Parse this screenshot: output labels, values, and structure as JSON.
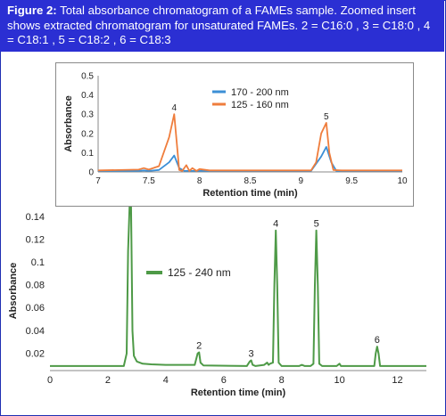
{
  "figure": {
    "label": "Figure 2:",
    "caption": "Total absorbance chromatogram of a FAMEs sample. Zoomed insert shows extracted chromatogram for unsaturated FAMEs. 2 = C16:0 , 3 = C18:0 , 4 = C18:1 , 5 = C18:2 , 6 = C18:3"
  },
  "colors": {
    "frame": "#1f2fb3",
    "caption_bg": "#2b2fd3",
    "main_line": "#4e9a47",
    "inset_blue": "#3b8fd6",
    "inset_orange": "#ef7d3c"
  },
  "chart_data": [
    {
      "type": "line",
      "name": "main",
      "xlabel": "Retention time (min)",
      "ylabel": "Absorbance",
      "xlim": [
        0,
        13
      ],
      "ylim": [
        0.005,
        0.145
      ],
      "xticks": [
        0,
        2,
        4,
        6,
        8,
        10,
        12
      ],
      "yticks": [
        0.02,
        0.04,
        0.06,
        0.08,
        0.1,
        0.12,
        0.14
      ],
      "ytick_labels": [
        "0.02",
        "0.04",
        "0.06",
        "0.08",
        "0.1",
        "0.12",
        "0.14"
      ],
      "legend": "left-middle",
      "series": [
        {
          "name": "125 - 240 nm",
          "color": "#4e9a47",
          "x": [
            0.0,
            2.55,
            2.65,
            2.7,
            2.75,
            2.8,
            2.85,
            2.9,
            3.0,
            3.2,
            3.5,
            4.0,
            5.0,
            5.1,
            5.15,
            5.2,
            5.3,
            6.8,
            6.9,
            6.95,
            7.0,
            7.1,
            7.4,
            7.5,
            7.55,
            7.6,
            7.7,
            7.75,
            7.8,
            7.85,
            7.9,
            8.0,
            8.6,
            8.7,
            8.8,
            9.0,
            9.1,
            9.15,
            9.2,
            9.25,
            9.3,
            9.4,
            9.9,
            10.0,
            10.05,
            11.2,
            11.25,
            11.3,
            11.35,
            11.4,
            12.0,
            13.0
          ],
          "values": [
            0.009,
            0.009,
            0.02,
            0.11,
            0.15,
            0.15,
            0.04,
            0.018,
            0.013,
            0.011,
            0.0105,
            0.01,
            0.01,
            0.02,
            0.021,
            0.012,
            0.0095,
            0.009,
            0.013,
            0.014,
            0.01,
            0.009,
            0.01,
            0.012,
            0.01,
            0.011,
            0.012,
            0.08,
            0.128,
            0.08,
            0.012,
            0.009,
            0.009,
            0.01,
            0.009,
            0.009,
            0.011,
            0.08,
            0.128,
            0.08,
            0.011,
            0.009,
            0.009,
            0.011,
            0.009,
            0.009,
            0.02,
            0.026,
            0.02,
            0.009,
            0.009,
            0.009
          ]
        }
      ],
      "annotations": [
        {
          "text": "2",
          "x": 5.15,
          "y": 0.021
        },
        {
          "text": "3",
          "x": 6.95,
          "y": 0.014
        },
        {
          "text": "4",
          "x": 7.8,
          "y": 0.128
        },
        {
          "text": "5",
          "x": 9.2,
          "y": 0.128
        },
        {
          "text": "6",
          "x": 11.3,
          "y": 0.026
        }
      ]
    },
    {
      "type": "line",
      "name": "inset",
      "xlabel": "Retention time (min)",
      "ylabel": "Absorbance",
      "xlim": [
        7,
        10
      ],
      "ylim": [
        0,
        0.5
      ],
      "xticks": [
        7,
        7.5,
        8,
        8.5,
        9,
        9.5,
        10
      ],
      "xtick_labels": [
        "7",
        "7.5",
        "8",
        "8.5",
        "9",
        "9.5",
        "10"
      ],
      "yticks": [
        0,
        0.1,
        0.2,
        0.3,
        0.4,
        0.5
      ],
      "ytick_labels": [
        "0",
        "0.1",
        "0.2",
        "0.3",
        "0.4",
        "0.5"
      ],
      "legend": "top-left",
      "series": [
        {
          "name": "170 - 200 nm",
          "color": "#3b8fd6",
          "x": [
            7.0,
            7.4,
            7.45,
            7.5,
            7.6,
            7.7,
            7.75,
            7.8,
            7.85,
            7.9,
            9.1,
            9.2,
            9.25,
            9.3,
            9.35,
            10.0
          ],
          "values": [
            0.005,
            0.005,
            0.008,
            0.005,
            0.01,
            0.05,
            0.085,
            0.02,
            0.005,
            0.005,
            0.005,
            0.08,
            0.13,
            0.05,
            0.005,
            0.005
          ]
        },
        {
          "name": "125 - 160 nm",
          "color": "#ef7d3c",
          "x": [
            7.0,
            7.4,
            7.45,
            7.5,
            7.6,
            7.7,
            7.75,
            7.8,
            7.83,
            7.87,
            7.9,
            7.93,
            7.97,
            8.0,
            8.1,
            9.1,
            9.15,
            9.2,
            9.25,
            9.28,
            9.32,
            9.4,
            10.0
          ],
          "values": [
            0.008,
            0.012,
            0.02,
            0.012,
            0.03,
            0.18,
            0.3,
            0.01,
            0.005,
            0.035,
            0.005,
            0.02,
            0.005,
            0.015,
            0.008,
            0.008,
            0.05,
            0.2,
            0.255,
            0.1,
            0.01,
            0.008,
            0.008
          ]
        }
      ],
      "annotations": [
        {
          "text": "4",
          "x": 7.75,
          "y": 0.3
        },
        {
          "text": "5",
          "x": 9.25,
          "y": 0.255
        }
      ]
    }
  ]
}
